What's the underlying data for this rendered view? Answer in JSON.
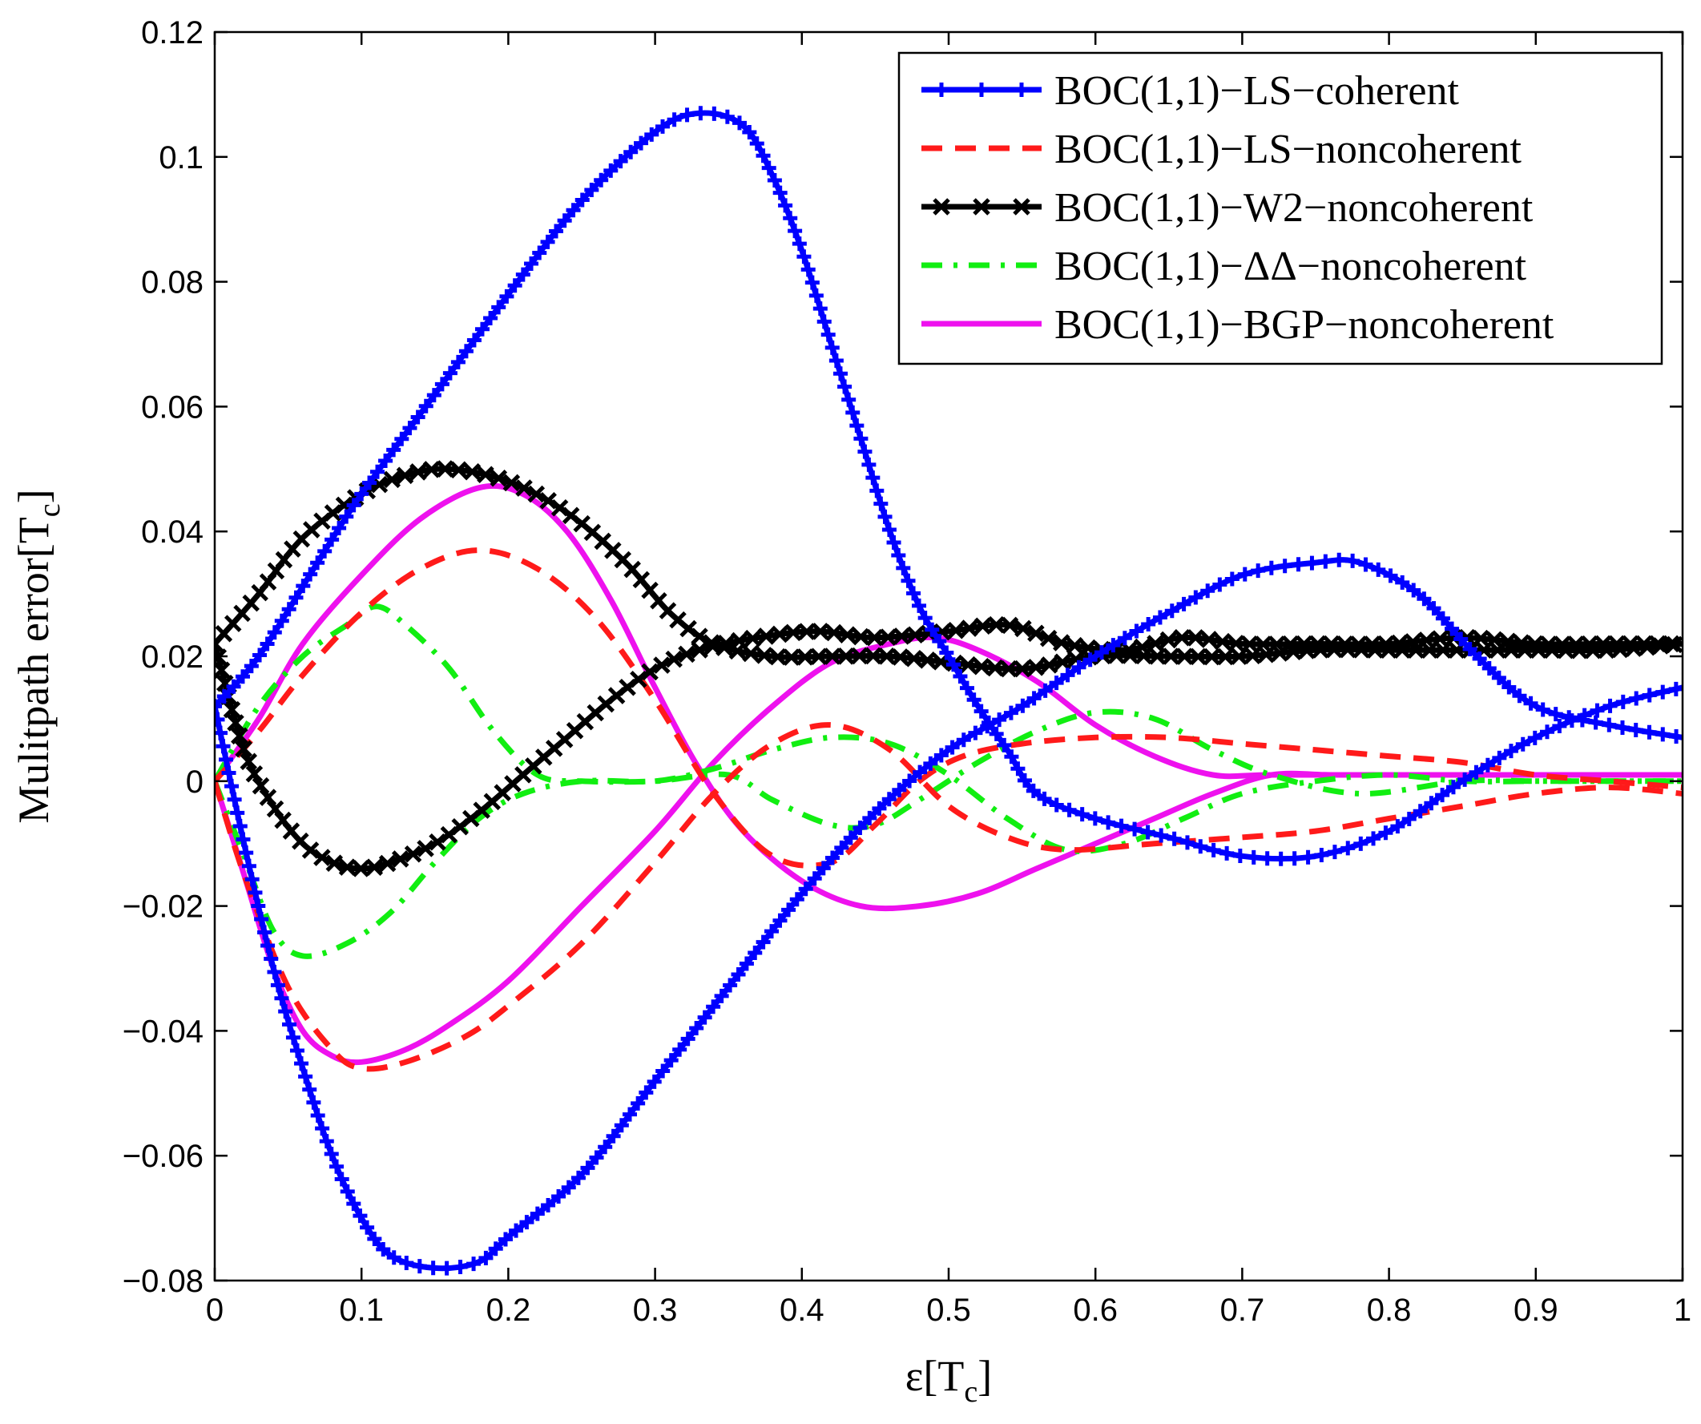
{
  "chart_data": {
    "type": "line",
    "title": "",
    "xlabel": "ε[T_c]",
    "xlabel_main": "ε[T",
    "xlabel_sub": "c",
    "xlabel_close": "]",
    "ylabel": "Mulitpath error[T_c]",
    "ylabel_main": "Mulitpath error[T",
    "ylabel_sub": "c",
    "ylabel_close": "]",
    "xlim": [
      0,
      1
    ],
    "ylim": [
      -0.08,
      0.12
    ],
    "x_ticks": [
      0,
      0.1,
      0.2,
      0.3,
      0.4,
      0.5,
      0.6,
      0.7,
      0.8,
      0.9,
      1
    ],
    "x_tick_labels": [
      "0",
      "0.1",
      "0.2",
      "0.3",
      "0.4",
      "0.5",
      "0.6",
      "0.7",
      "0.8",
      "0.9",
      "1"
    ],
    "y_ticks": [
      -0.08,
      -0.06,
      -0.04,
      -0.02,
      0,
      0.02,
      0.04,
      0.06,
      0.08,
      0.1,
      0.12
    ],
    "y_tick_labels": [
      "−0.08",
      "−0.06",
      "−0.04",
      "−0.02",
      "0",
      "0.02",
      "0.04",
      "0.06",
      "0.08",
      "0.1",
      "0.12"
    ],
    "grid": false,
    "legend_position": "top-right",
    "series": [
      {
        "name": "BOC(1,1)−LS−coherent",
        "color": "#0000ff",
        "style": "solid",
        "marker": "plus",
        "envelope_upper": [
          [
            0,
            0.012
          ],
          [
            0.03,
            0.02
          ],
          [
            0.07,
            0.035
          ],
          [
            0.1,
            0.046
          ],
          [
            0.15,
            0.062
          ],
          [
            0.2,
            0.078
          ],
          [
            0.25,
            0.093
          ],
          [
            0.3,
            0.104
          ],
          [
            0.33,
            0.107
          ],
          [
            0.36,
            0.105
          ],
          [
            0.38,
            0.097
          ],
          [
            0.4,
            0.085
          ],
          [
            0.42,
            0.07
          ],
          [
            0.44,
            0.055
          ],
          [
            0.46,
            0.04
          ],
          [
            0.48,
            0.028
          ],
          [
            0.5,
            0.02
          ],
          [
            0.52,
            0.012
          ],
          [
            0.54,
            0.005
          ],
          [
            0.56,
            -0.002
          ],
          [
            0.6,
            -0.006
          ],
          [
            0.65,
            -0.009
          ],
          [
            0.7,
            -0.012
          ],
          [
            0.75,
            -0.012
          ],
          [
            0.8,
            -0.008
          ],
          [
            0.85,
            0
          ],
          [
            0.9,
            0.007
          ],
          [
            0.95,
            0.012
          ],
          [
            1,
            0.015
          ]
        ],
        "envelope_lower": [
          [
            0,
            0.012
          ],
          [
            0.02,
            -0.01
          ],
          [
            0.04,
            -0.03
          ],
          [
            0.06,
            -0.046
          ],
          [
            0.08,
            -0.06
          ],
          [
            0.1,
            -0.07
          ],
          [
            0.12,
            -0.076
          ],
          [
            0.15,
            -0.078
          ],
          [
            0.18,
            -0.077
          ],
          [
            0.2,
            -0.073
          ],
          [
            0.25,
            -0.063
          ],
          [
            0.3,
            -0.048
          ],
          [
            0.35,
            -0.033
          ],
          [
            0.4,
            -0.018
          ],
          [
            0.45,
            -0.005
          ],
          [
            0.5,
            0.005
          ],
          [
            0.55,
            0.012
          ],
          [
            0.6,
            0.02
          ],
          [
            0.65,
            0.027
          ],
          [
            0.7,
            0.033
          ],
          [
            0.75,
            0.035
          ],
          [
            0.78,
            0.035
          ],
          [
            0.82,
            0.03
          ],
          [
            0.86,
            0.02
          ],
          [
            0.9,
            0.012
          ],
          [
            0.95,
            0.009
          ],
          [
            1,
            0.007
          ]
        ]
      },
      {
        "name": "BOC(1,1)−LS−noncoherent",
        "color": "#ff1a1a",
        "style": "dashed",
        "marker": "none",
        "envelope_upper": [
          [
            0,
            0
          ],
          [
            0.03,
            0.008
          ],
          [
            0.06,
            0.017
          ],
          [
            0.1,
            0.027
          ],
          [
            0.14,
            0.034
          ],
          [
            0.18,
            0.037
          ],
          [
            0.22,
            0.034
          ],
          [
            0.26,
            0.026
          ],
          [
            0.3,
            0.013
          ],
          [
            0.34,
            -0.002
          ],
          [
            0.38,
            -0.012
          ],
          [
            0.42,
            -0.013
          ],
          [
            0.45,
            -0.007
          ],
          [
            0.48,
            0
          ],
          [
            0.51,
            0.004
          ],
          [
            0.55,
            0.006
          ],
          [
            0.6,
            0.007
          ],
          [
            0.65,
            0.007
          ],
          [
            0.7,
            0.006
          ],
          [
            0.75,
            0.005
          ],
          [
            0.8,
            0.004
          ],
          [
            0.85,
            0.003
          ],
          [
            0.9,
            0.001
          ],
          [
            0.95,
            0
          ],
          [
            1,
            -0.001
          ]
        ],
        "envelope_lower": [
          [
            0,
            0
          ],
          [
            0.02,
            -0.015
          ],
          [
            0.05,
            -0.033
          ],
          [
            0.08,
            -0.043
          ],
          [
            0.1,
            -0.046
          ],
          [
            0.13,
            -0.045
          ],
          [
            0.17,
            -0.041
          ],
          [
            0.2,
            -0.036
          ],
          [
            0.25,
            -0.026
          ],
          [
            0.3,
            -0.013
          ],
          [
            0.34,
            -0.002
          ],
          [
            0.38,
            0.006
          ],
          [
            0.42,
            0.009
          ],
          [
            0.46,
            0.005
          ],
          [
            0.5,
            -0.004
          ],
          [
            0.54,
            -0.009
          ],
          [
            0.58,
            -0.011
          ],
          [
            0.64,
            -0.01
          ],
          [
            0.7,
            -0.009
          ],
          [
            0.75,
            -0.008
          ],
          [
            0.8,
            -0.006
          ],
          [
            0.85,
            -0.004
          ],
          [
            0.9,
            -0.002
          ],
          [
            0.95,
            -0.001
          ],
          [
            1,
            -0.002
          ]
        ]
      },
      {
        "name": "BOC(1,1)−W2−noncoherent",
        "color": "#000000",
        "style": "solid",
        "marker": "x",
        "envelope_upper": [
          [
            0,
            0.022
          ],
          [
            0.03,
            0.03
          ],
          [
            0.06,
            0.039
          ],
          [
            0.1,
            0.046
          ],
          [
            0.13,
            0.049
          ],
          [
            0.16,
            0.05
          ],
          [
            0.2,
            0.048
          ],
          [
            0.24,
            0.043
          ],
          [
            0.28,
            0.035
          ],
          [
            0.31,
            0.027
          ],
          [
            0.34,
            0.022
          ],
          [
            0.38,
            0.02
          ],
          [
            0.42,
            0.02
          ],
          [
            0.46,
            0.02
          ],
          [
            0.5,
            0.019
          ],
          [
            0.55,
            0.018
          ],
          [
            0.6,
            0.02
          ],
          [
            0.65,
            0.02
          ],
          [
            0.7,
            0.02
          ],
          [
            0.75,
            0.021
          ],
          [
            0.8,
            0.021
          ],
          [
            0.85,
            0.021
          ],
          [
            0.9,
            0.021
          ],
          [
            0.95,
            0.021
          ],
          [
            1,
            0.022
          ]
        ],
        "envelope_lower": [
          [
            0,
            0.022
          ],
          [
            0.02,
            0.005
          ],
          [
            0.04,
            -0.004
          ],
          [
            0.06,
            -0.01
          ],
          [
            0.08,
            -0.013
          ],
          [
            0.1,
            -0.014
          ],
          [
            0.12,
            -0.013
          ],
          [
            0.15,
            -0.01
          ],
          [
            0.18,
            -0.005
          ],
          [
            0.21,
            0.001
          ],
          [
            0.24,
            0.007
          ],
          [
            0.27,
            0.013
          ],
          [
            0.3,
            0.018
          ],
          [
            0.33,
            0.021
          ],
          [
            0.37,
            0.023
          ],
          [
            0.41,
            0.024
          ],
          [
            0.45,
            0.023
          ],
          [
            0.5,
            0.024
          ],
          [
            0.54,
            0.025
          ],
          [
            0.58,
            0.022
          ],
          [
            0.62,
            0.021
          ],
          [
            0.66,
            0.023
          ],
          [
            0.7,
            0.022
          ],
          [
            0.75,
            0.022
          ],
          [
            0.8,
            0.022
          ],
          [
            0.85,
            0.023
          ],
          [
            0.9,
            0.022
          ],
          [
            0.95,
            0.022
          ],
          [
            1,
            0.022
          ]
        ]
      },
      {
        "name": "BOC(1,1)−ΔΔ−noncoherent",
        "color": "#11ee11",
        "style": "dashdot",
        "marker": "none",
        "envelope_upper": [
          [
            0,
            0
          ],
          [
            0.03,
            0.012
          ],
          [
            0.06,
            0.02
          ],
          [
            0.09,
            0.025
          ],
          [
            0.11,
            0.028
          ],
          [
            0.13,
            0.025
          ],
          [
            0.16,
            0.018
          ],
          [
            0.19,
            0.008
          ],
          [
            0.22,
            0.001
          ],
          [
            0.25,
            0
          ],
          [
            0.3,
            0
          ],
          [
            0.35,
            0.001
          ],
          [
            0.38,
            -0.003
          ],
          [
            0.42,
            -0.007
          ],
          [
            0.45,
            -0.007
          ],
          [
            0.48,
            -0.003
          ],
          [
            0.52,
            0.003
          ],
          [
            0.56,
            0.008
          ],
          [
            0.6,
            0.011
          ],
          [
            0.64,
            0.01
          ],
          [
            0.68,
            0.005
          ],
          [
            0.72,
            0.001
          ],
          [
            0.78,
            -0.002
          ],
          [
            0.85,
            0
          ],
          [
            0.9,
            0
          ],
          [
            0.95,
            0
          ],
          [
            1,
            0
          ]
        ],
        "envelope_lower": [
          [
            0,
            0
          ],
          [
            0.02,
            -0.012
          ],
          [
            0.04,
            -0.024
          ],
          [
            0.06,
            -0.028
          ],
          [
            0.09,
            -0.026
          ],
          [
            0.12,
            -0.021
          ],
          [
            0.15,
            -0.013
          ],
          [
            0.18,
            -0.006
          ],
          [
            0.21,
            -0.002
          ],
          [
            0.25,
            0
          ],
          [
            0.3,
            0
          ],
          [
            0.34,
            0.002
          ],
          [
            0.38,
            0.005
          ],
          [
            0.42,
            0.007
          ],
          [
            0.46,
            0.006
          ],
          [
            0.5,
            0.001
          ],
          [
            0.54,
            -0.006
          ],
          [
            0.58,
            -0.011
          ],
          [
            0.62,
            -0.01
          ],
          [
            0.66,
            -0.006
          ],
          [
            0.7,
            -0.002
          ],
          [
            0.75,
            0
          ],
          [
            0.8,
            0.001
          ],
          [
            0.85,
            0
          ],
          [
            0.9,
            0
          ],
          [
            0.95,
            0
          ],
          [
            1,
            0
          ]
        ]
      },
      {
        "name": "BOC(1,1)−BGP−noncoherent",
        "color": "#ee11ee",
        "style": "solid",
        "marker": "none",
        "envelope_upper": [
          [
            0,
            0
          ],
          [
            0.03,
            0.01
          ],
          [
            0.06,
            0.022
          ],
          [
            0.1,
            0.033
          ],
          [
            0.14,
            0.042
          ],
          [
            0.18,
            0.047
          ],
          [
            0.21,
            0.046
          ],
          [
            0.24,
            0.04
          ],
          [
            0.27,
            0.029
          ],
          [
            0.3,
            0.015
          ],
          [
            0.33,
            0.002
          ],
          [
            0.36,
            -0.008
          ],
          [
            0.4,
            -0.016
          ],
          [
            0.44,
            -0.02
          ],
          [
            0.48,
            -0.02
          ],
          [
            0.52,
            -0.018
          ],
          [
            0.56,
            -0.014
          ],
          [
            0.6,
            -0.01
          ],
          [
            0.64,
            -0.006
          ],
          [
            0.68,
            -0.002
          ],
          [
            0.72,
            0.001
          ],
          [
            0.76,
            0.001
          ],
          [
            0.8,
            0.001
          ],
          [
            0.85,
            0.001
          ],
          [
            0.9,
            0.001
          ],
          [
            0.95,
            0.001
          ],
          [
            1,
            0.001
          ]
        ],
        "envelope_lower": [
          [
            0,
            0
          ],
          [
            0.02,
            -0.015
          ],
          [
            0.04,
            -0.03
          ],
          [
            0.06,
            -0.04
          ],
          [
            0.08,
            -0.044
          ],
          [
            0.1,
            -0.045
          ],
          [
            0.13,
            -0.043
          ],
          [
            0.16,
            -0.039
          ],
          [
            0.2,
            -0.032
          ],
          [
            0.25,
            -0.02
          ],
          [
            0.3,
            -0.008
          ],
          [
            0.34,
            0.003
          ],
          [
            0.38,
            0.012
          ],
          [
            0.42,
            0.019
          ],
          [
            0.46,
            0.022
          ],
          [
            0.49,
            0.023
          ],
          [
            0.52,
            0.021
          ],
          [
            0.56,
            0.016
          ],
          [
            0.6,
            0.009
          ],
          [
            0.64,
            0.004
          ],
          [
            0.68,
            0.001
          ],
          [
            0.72,
            0.001
          ],
          [
            0.8,
            0.001
          ],
          [
            0.9,
            0.001
          ],
          [
            1,
            0.001
          ]
        ]
      }
    ]
  }
}
